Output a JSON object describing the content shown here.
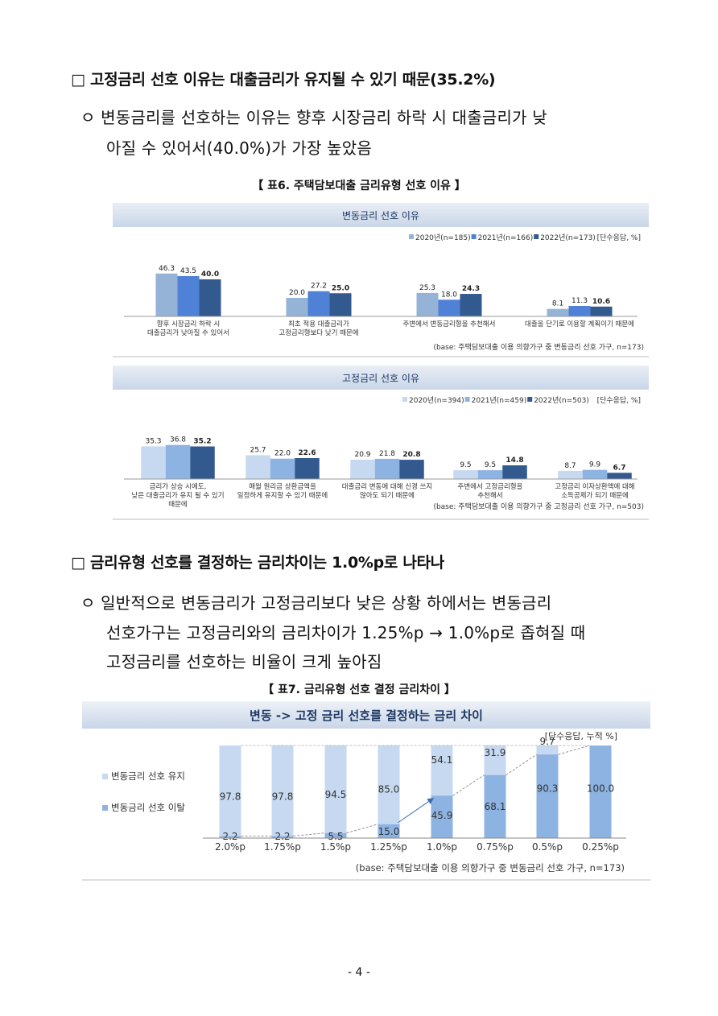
{
  "section1": {
    "heading": "□ 고정금리 선호 이유는 대출금리가 유지될 수 있기 때문(35.2%)",
    "bullet_line1": "ㅇ 변동금리를 선호하는 이유는 향후 시장금리 하락 시 대출금리가 낮",
    "bullet_line2": "아질 수 있어서(40.0%)가 가장 높았음"
  },
  "table6_caption": "【 표6. 주택담보대출 금리유형 선호 이유 】",
  "table7_caption": "【 표7. 금리유형 선호 결정 금리차이 】",
  "section2": {
    "heading": "□ 금리유형 선호를 결정하는 금리차이는 1.0%p로 나타나",
    "bullet_line1": "ㅇ 일반적으로 변동금리가 고정금리보다 낮은 상황 하에서는 변동금리",
    "bullet_line2": "선호가구는 고정금리와의 금리차이가 1.25%p → 1.0%p로 좁혀질 때",
    "bullet_line3": "고정금리를 선호하는 비율이 크게 높아짐"
  },
  "page_number": "- 4 -",
  "chart_data": [
    {
      "type": "bar",
      "title": "변동금리 선호 이유",
      "legend": [
        "2020년(n=185)",
        "2021년(n=166)",
        "2022년(n=173)"
      ],
      "unit_note": "[단수응답, %]",
      "categories": [
        "향후 시장금리 하락 시|대출금리가 낮아질 수 있어서",
        "최초 적용 대출금리가|고정금리형보다 낮기 때문에",
        "주변에서 변동금리형을 추천해서",
        "대출을 단기로 이용할 계획이기 때문에"
      ],
      "series": [
        {
          "name": "2020년(n=185)",
          "values": [
            46.3,
            20.0,
            25.3,
            8.1
          ]
        },
        {
          "name": "2021년(n=166)",
          "values": [
            43.5,
            27.2,
            18.0,
            11.3
          ]
        },
        {
          "name": "2022년(n=173)",
          "values": [
            40.0,
            25.0,
            24.3,
            10.6
          ]
        }
      ],
      "base_note": "(base: 주택담보대출 이용 의향가구 중 변동금리 선호 가구, n=173)",
      "colors": [
        "#95b3d7",
        "#4f81d6",
        "#325a8f"
      ]
    },
    {
      "type": "bar",
      "title": "고정금리 선호 이유",
      "legend": [
        "2020년(n=394)",
        "2021년(n=459)",
        "2022년(n=503)"
      ],
      "unit_note": "[단수응답, %]",
      "categories": [
        "금리가 상승 시에도,|낮은 대출금리가 유지 될 수 있기|때문에",
        "매월 원리금 상환금액을|일정하게 유지할 수 있기 때문에",
        "대출금리 변동에 대해 신경 쓰지|않아도 되기 때문에",
        "주변에서 고정금리형을|추천해서",
        "고정금리 이자상환액에 대해|소득공제가 되기 때문에"
      ],
      "series": [
        {
          "name": "2020년(n=394)",
          "values": [
            35.3,
            25.7,
            20.9,
            9.5,
            8.7
          ]
        },
        {
          "name": "2021년(n=459)",
          "values": [
            36.8,
            22.0,
            21.8,
            9.5,
            9.9
          ]
        },
        {
          "name": "2022년(n=503)",
          "values": [
            35.2,
            22.6,
            20.8,
            14.8,
            6.7
          ]
        }
      ],
      "base_note": "(base: 주택담보대출 이용 의향가구 중 고정금리 선호 가구, n=503)",
      "colors": [
        "#c6d9f1",
        "#8db3e2",
        "#325a8f"
      ]
    },
    {
      "type": "bar",
      "title": "변동 -> 고정 금리 선호를 결정하는 금리 차이",
      "unit_note": "[단수응답, 누적 %]",
      "categories": [
        "2.0%p",
        "1.75%p",
        "1.5%p",
        "1.25%p",
        "1.0%p",
        "0.75%p",
        "0.5%p",
        "0.25%p"
      ],
      "series": [
        {
          "name": "변동금리 선호 유지",
          "values": [
            97.8,
            97.8,
            94.5,
            85.0,
            54.1,
            31.9,
            9.7,
            0.0
          ]
        },
        {
          "name": "변동금리 선호 이탈",
          "values": [
            2.2,
            2.2,
            5.5,
            15.0,
            45.9,
            68.1,
            90.3,
            100.0
          ]
        }
      ],
      "base_note": "(base: 주택담보대출 이용 의향가구 중 변동금리 선호 가구, n=173)",
      "colors": [
        "#c6d9f1",
        "#8db3e2"
      ]
    }
  ]
}
